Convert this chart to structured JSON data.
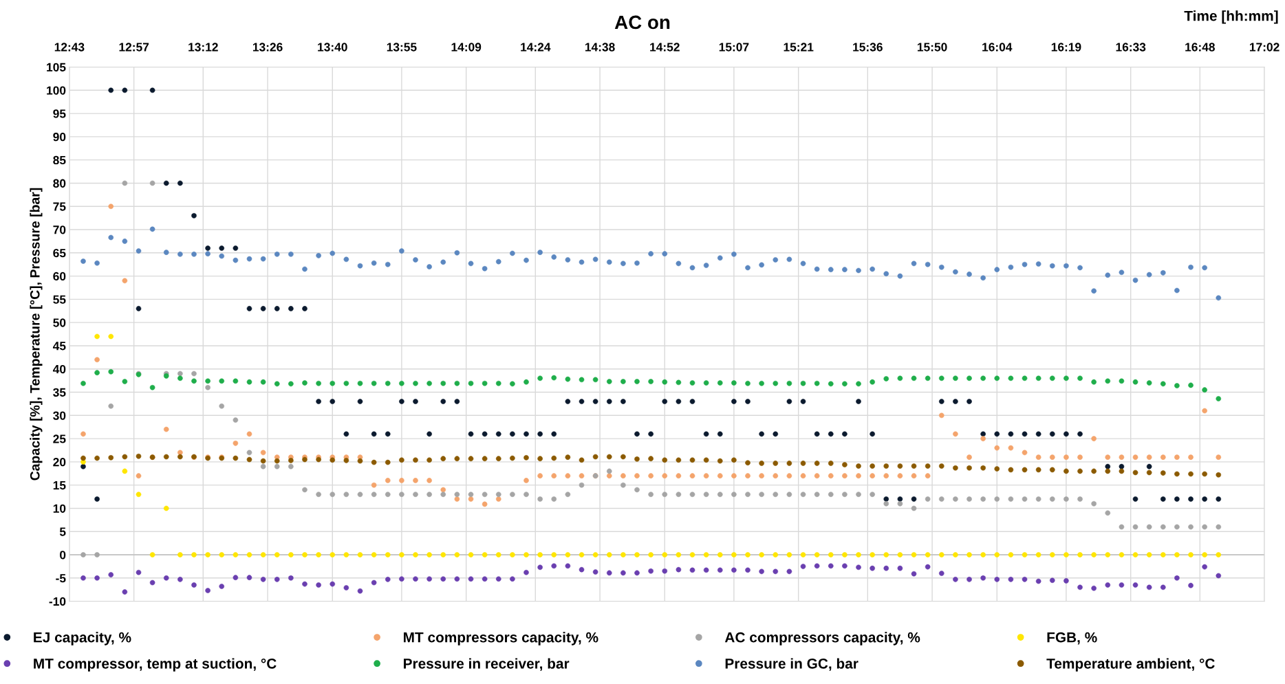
{
  "chart_data": {
    "type": "scatter",
    "title": "AC on",
    "xlabel": "Time [hh:mm]",
    "ylabel": "Capacity [%], Temperature [°C], Pressure [bar]",
    "xlim": [
      12.717,
      17.033
    ],
    "ylim": [
      -10,
      105
    ],
    "xticks": [
      {
        "value": 12.717,
        "label": "12:43"
      },
      {
        "value": 12.95,
        "label": "12:57"
      },
      {
        "value": 13.2,
        "label": "13:12"
      },
      {
        "value": 13.433,
        "label": "13:26"
      },
      {
        "value": 13.667,
        "label": "13:40"
      },
      {
        "value": 13.917,
        "label": "13:55"
      },
      {
        "value": 14.15,
        "label": "14:09"
      },
      {
        "value": 14.4,
        "label": "14:24"
      },
      {
        "value": 14.633,
        "label": "14:38"
      },
      {
        "value": 14.867,
        "label": "14:52"
      },
      {
        "value": 15.117,
        "label": "15:07"
      },
      {
        "value": 15.35,
        "label": "15:21"
      },
      {
        "value": 15.6,
        "label": "15:36"
      },
      {
        "value": 15.833,
        "label": "15:50"
      },
      {
        "value": 16.067,
        "label": "16:04"
      },
      {
        "value": 16.317,
        "label": "16:19"
      },
      {
        "value": 16.55,
        "label": "16:33"
      },
      {
        "value": 16.8,
        "label": "16:48"
      },
      {
        "value": 17.033,
        "label": "17:02"
      }
    ],
    "yticks": [
      -10,
      -5,
      0,
      5,
      10,
      15,
      20,
      25,
      30,
      35,
      40,
      45,
      50,
      55,
      60,
      65,
      70,
      75,
      80,
      85,
      90,
      95,
      100,
      105
    ],
    "grid": true,
    "legend": "bottom",
    "marker": "circle",
    "ref_lines": [
      {
        "axis": "y",
        "value": 0,
        "color": "#bfbfbf"
      }
    ],
    "x": [
      12.767,
      12.817,
      12.867,
      12.917,
      12.967,
      13.017,
      13.067,
      13.117,
      13.167,
      13.217,
      13.267,
      13.317,
      13.367,
      13.417,
      13.467,
      13.517,
      13.567,
      13.617,
      13.667,
      13.717,
      13.767,
      13.817,
      13.867,
      13.917,
      13.967,
      14.017,
      14.067,
      14.117,
      14.167,
      14.217,
      14.267,
      14.317,
      14.367,
      14.417,
      14.467,
      14.517,
      14.567,
      14.617,
      14.667,
      14.717,
      14.767,
      14.817,
      14.867,
      14.917,
      14.967,
      15.017,
      15.067,
      15.117,
      15.167,
      15.217,
      15.267,
      15.317,
      15.367,
      15.417,
      15.467,
      15.517,
      15.567,
      15.617,
      15.667,
      15.717,
      15.767,
      15.817,
      15.867,
      15.917,
      15.967,
      16.017,
      16.067,
      16.117,
      16.167,
      16.217,
      16.267,
      16.317,
      16.367,
      16.417,
      16.467,
      16.517,
      16.567,
      16.617,
      16.667,
      16.717,
      16.767,
      16.817,
      16.867
    ],
    "series": [
      {
        "name": "EJ capacity, %",
        "color": "#0b1a2e",
        "values": [
          19,
          12,
          100,
          100,
          53,
          100,
          80,
          80,
          73,
          66,
          66,
          66,
          53,
          53,
          53,
          53,
          53,
          33,
          33,
          26,
          33,
          26,
          26,
          33,
          33,
          26,
          33,
          33,
          26,
          26,
          26,
          26,
          26,
          26,
          26,
          33,
          33,
          33,
          33,
          33,
          26,
          26,
          33,
          33,
          33,
          26,
          26,
          33,
          33,
          26,
          26,
          33,
          33,
          26,
          26,
          26,
          33,
          26,
          12,
          12,
          12,
          null,
          33,
          33,
          33,
          26,
          26,
          26,
          26,
          26,
          26,
          26,
          26,
          null,
          19,
          19,
          12,
          19,
          12,
          12,
          12,
          12,
          12
        ]
      },
      {
        "name": "MT compressors capacity, %",
        "color": "#f4a46c",
        "values": [
          26,
          42,
          75,
          59,
          17,
          21,
          27,
          22,
          21,
          21,
          21,
          24,
          26,
          22,
          21,
          21,
          21,
          21,
          21,
          21,
          21,
          15,
          16,
          16,
          16,
          16,
          14,
          12,
          12,
          10.9,
          12,
          null,
          16,
          17,
          17,
          17,
          17,
          17,
          17,
          17,
          17,
          17,
          17,
          17,
          17,
          17,
          17,
          17,
          17,
          17,
          17,
          17,
          17,
          17,
          17,
          17,
          17,
          17,
          17,
          17,
          17,
          17,
          30,
          26,
          21,
          25,
          23,
          23,
          22,
          21,
          21,
          21,
          21,
          25,
          21,
          21,
          21,
          21,
          21,
          21,
          21,
          31,
          21
        ]
      },
      {
        "name": "AC compressors capacity, %",
        "color": "#a5a5a5",
        "values": [
          0,
          0,
          32,
          80,
          39,
          80,
          39,
          39,
          39,
          36,
          32,
          29,
          22,
          19,
          19,
          19,
          14,
          13,
          13,
          13,
          13,
          13,
          13,
          13,
          13,
          13,
          13,
          13,
          13,
          13,
          13,
          13,
          13,
          12,
          12,
          13,
          15,
          17,
          18,
          15,
          14,
          13,
          13,
          13,
          13,
          13,
          13,
          13,
          13,
          13,
          13,
          13,
          13,
          13,
          13,
          13,
          13,
          13,
          11,
          11,
          10,
          12,
          12,
          12,
          12,
          12,
          12,
          12,
          12,
          12,
          12,
          12,
          12,
          11,
          9,
          6,
          6,
          6,
          6,
          6,
          6,
          6,
          6
        ]
      },
      {
        "name": "FGB, %",
        "color": "#ffe600",
        "values": [
          20,
          47,
          47,
          18,
          13,
          0,
          10,
          0,
          0,
          0,
          0,
          0,
          0,
          0,
          0,
          0,
          0,
          0,
          0,
          0,
          0,
          0,
          0,
          0,
          0,
          0,
          0,
          0,
          0,
          0,
          0,
          0,
          0,
          0,
          0,
          0,
          0,
          0,
          0,
          0,
          0,
          0,
          0,
          0,
          0,
          0,
          0,
          0,
          0,
          0,
          0,
          0,
          0,
          0,
          0,
          0,
          0,
          0,
          0,
          0,
          0,
          0,
          0,
          0,
          0,
          0,
          0,
          0,
          0,
          0,
          0,
          0,
          0,
          0,
          0,
          0,
          0,
          0,
          0,
          0,
          0,
          0,
          0
        ]
      },
      {
        "name": "MT compressor, temp at suction, °C",
        "color": "#6a3fb0",
        "values": [
          -5,
          -5,
          -4.3,
          -8,
          -3.8,
          -6,
          -5,
          -5.3,
          -6.5,
          -7.7,
          -6.8,
          -4.9,
          -4.9,
          -5.3,
          -5.3,
          -5,
          -6.3,
          -6.5,
          -6.3,
          -7.1,
          -7.8,
          -6,
          -5.3,
          -5.2,
          -5.2,
          -5.2,
          -5.2,
          -5.2,
          -5.2,
          -5.2,
          -5.2,
          -5.2,
          -3.8,
          -2.7,
          -2.4,
          -2.4,
          -3.2,
          -3.7,
          -3.9,
          -3.9,
          -3.9,
          -3.5,
          -3.5,
          -3.2,
          -3.3,
          -3.3,
          -3.3,
          -3.3,
          -3.3,
          -3.6,
          -3.6,
          -3.6,
          -2.5,
          -2.4,
          -2.4,
          -2.4,
          -2.7,
          -2.9,
          -2.9,
          -2.9,
          -4.1,
          -2.6,
          -4,
          -5.3,
          -5.3,
          -5,
          -5.3,
          -5.3,
          -5.3,
          -5.7,
          -5.5,
          -5.6,
          -7,
          -7.2,
          -6.5,
          -6.5,
          -6.5,
          -7,
          -7,
          -5,
          -6.6,
          -2.6,
          -4.5
        ]
      },
      {
        "name": "Pressure in receiver, bar",
        "color": "#1fae4b",
        "values": [
          36.9,
          39.2,
          39.4,
          37.3,
          38.8,
          36,
          38.5,
          38,
          37.4,
          37.4,
          37.4,
          37.4,
          37.2,
          37.2,
          36.8,
          36.8,
          37,
          36.9,
          36.9,
          36.9,
          36.9,
          36.9,
          36.9,
          36.9,
          36.9,
          36.9,
          36.9,
          36.9,
          36.9,
          36.9,
          36.9,
          36.8,
          37.2,
          38,
          38.1,
          37.8,
          37.7,
          37.7,
          37.3,
          37.3,
          37.3,
          37.3,
          37.2,
          37.1,
          37,
          37,
          37,
          37,
          36.9,
          36.9,
          36.9,
          36.9,
          36.9,
          36.9,
          36.8,
          36.8,
          36.8,
          37.2,
          37.9,
          38,
          38,
          38,
          38,
          38,
          38,
          38,
          38,
          38,
          38,
          38,
          38,
          38,
          38,
          37.2,
          37.4,
          37.4,
          37.2,
          37,
          36.8,
          36.4,
          36.5,
          35.5,
          33.6
        ]
      },
      {
        "name": "Pressure in GC, bar",
        "color": "#5b87c0",
        "values": [
          63.2,
          62.8,
          68.3,
          67.5,
          65.4,
          70.1,
          65.1,
          64.7,
          64.7,
          64.8,
          64.3,
          63.4,
          63.7,
          63.7,
          64.7,
          64.7,
          61.5,
          64.4,
          64.9,
          63.6,
          62.2,
          62.8,
          62.5,
          65.4,
          63.5,
          62,
          63,
          65,
          62.7,
          61.6,
          63.1,
          64.9,
          63.4,
          65.1,
          64.1,
          63.5,
          63,
          63.6,
          63,
          62.7,
          62.8,
          64.8,
          64.8,
          62.7,
          61.8,
          62.3,
          63.9,
          64.7,
          61.8,
          62.4,
          63.5,
          63.6,
          62.7,
          61.5,
          61.4,
          61.4,
          61.2,
          61.5,
          60.5,
          60,
          62.7,
          62.5,
          61.9,
          60.9,
          60.4,
          59.6,
          61.4,
          61.9,
          62.5,
          62.6,
          62.2,
          62.2,
          61.8,
          56.8,
          60.2,
          60.8,
          59.1,
          60.3,
          60.7,
          56.9,
          61.9,
          61.8,
          55.3
        ]
      },
      {
        "name": "Temperature ambient, °C",
        "color": "#8b5a00",
        "values": [
          20.8,
          20.8,
          20.9,
          21.1,
          21.2,
          21,
          21.1,
          21.1,
          21.1,
          20.8,
          20.8,
          20.8,
          20.5,
          20.2,
          20.2,
          20.3,
          20.5,
          20.5,
          20.4,
          20.3,
          20.2,
          19.9,
          19.9,
          20.4,
          20.4,
          20.4,
          20.7,
          20.7,
          20.7,
          20.7,
          20.7,
          20.8,
          20.9,
          20.7,
          20.8,
          21,
          20.4,
          21.1,
          21.1,
          21.1,
          20.6,
          20.7,
          20.4,
          20.4,
          20.4,
          20.4,
          20.2,
          20.4,
          19.8,
          19.7,
          19.7,
          19.7,
          19.7,
          19.7,
          19.7,
          19.4,
          19.1,
          19.1,
          19.1,
          19.1,
          19.1,
          19.1,
          19.1,
          18.7,
          18.7,
          18.7,
          18.5,
          18.3,
          18.3,
          18.3,
          18.3,
          18,
          18,
          18,
          18,
          18,
          17.7,
          17.7,
          17.6,
          17.4,
          17.4,
          17.4,
          17.2
        ]
      }
    ]
  }
}
